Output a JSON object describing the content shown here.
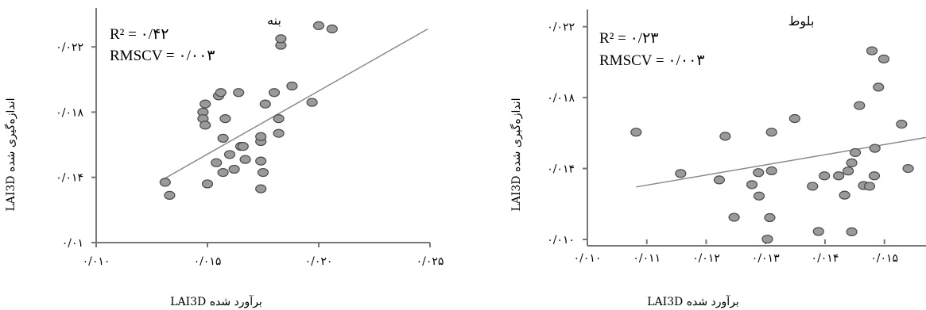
{
  "chart_data": [
    {
      "type": "scatter",
      "title": "بنه",
      "xlabel": "LAI3D برآورد شده",
      "ylabel": "LAI3D اندازه‌گیری شده",
      "xlim": [
        0.01,
        0.025
      ],
      "ylim": [
        0.01,
        0.024
      ],
      "x_ticks": [
        0.01,
        0.015,
        0.02,
        0.025
      ],
      "x_tick_labels": [
        "۰/۰۱۰",
        "۰/۰۱۵",
        "۰/۰۲۰",
        "۰/۰۲۵"
      ],
      "y_ticks": [
        0.01,
        0.014,
        0.018,
        0.022
      ],
      "y_tick_labels": [
        "۰/۰۱",
        "۰/۰۱۴",
        "۰/۰۱۸",
        "۰/۰۲۲"
      ],
      "annotations": {
        "r2": "R² = ۰/۴۲",
        "rmscv": "RMSCV = ۰/۰۰۳"
      },
      "grid": false,
      "points": [
        [
          0.0131,
          0.0137
        ],
        [
          0.0133,
          0.0129
        ],
        [
          0.0148,
          0.018
        ],
        [
          0.0148,
          0.0176
        ],
        [
          0.0149,
          0.0185
        ],
        [
          0.0149,
          0.0172
        ],
        [
          0.015,
          0.0136
        ],
        [
          0.0154,
          0.0149
        ],
        [
          0.0155,
          0.019
        ],
        [
          0.0156,
          0.0192
        ],
        [
          0.0157,
          0.0143
        ],
        [
          0.0157,
          0.0164
        ],
        [
          0.0158,
          0.0176
        ],
        [
          0.016,
          0.0154
        ],
        [
          0.0162,
          0.0145
        ],
        [
          0.0164,
          0.0192
        ],
        [
          0.0165,
          0.0159
        ],
        [
          0.0166,
          0.0159
        ],
        [
          0.0167,
          0.0151
        ],
        [
          0.0174,
          0.0133
        ],
        [
          0.0174,
          0.015
        ],
        [
          0.0174,
          0.0162
        ],
        [
          0.0174,
          0.0165
        ],
        [
          0.0175,
          0.0143
        ],
        [
          0.0176,
          0.0185
        ],
        [
          0.018,
          0.0192
        ],
        [
          0.0182,
          0.0167
        ],
        [
          0.0182,
          0.0176
        ],
        [
          0.0183,
          0.0221
        ],
        [
          0.0183,
          0.0225
        ],
        [
          0.0188,
          0.0196
        ],
        [
          0.0197,
          0.0186
        ],
        [
          0.02,
          0.0233
        ],
        [
          0.0206,
          0.0231
        ]
      ],
      "trend": {
        "x": [
          0.0131,
          0.0249
        ],
        "y": [
          0.01395,
          0.0231
        ]
      }
    },
    {
      "type": "scatter",
      "title": "بلوط",
      "xlabel": "LAI3D برآورد شده",
      "ylabel": "LAI3D اندازه‌گیری شده",
      "xlim": [
        0.01,
        0.0157
      ],
      "ylim": [
        0.01,
        0.0227
      ],
      "x_ticks": [
        0.01,
        0.011,
        0.012,
        0.013,
        0.014,
        0.015
      ],
      "x_tick_labels": [
        "۰/۰۱۰",
        "۰/۰۱۱",
        "۰/۰۱۲",
        "۰/۰۱۳",
        "۰/۰۱۴",
        "۰/۰۱۵"
      ],
      "y_ticks": [
        0.01,
        0.014,
        0.018,
        0.022
      ],
      "y_tick_labels": [
        "۰/۰۱۰",
        "۰/۰۱۴",
        "۰/۰۱۸",
        "۰/۰۲۲"
      ],
      "annotations": {
        "r2": "R² = ۰/۲۳",
        "rmscv": "RMSCV = ۰/۰۰۳"
      },
      "grid": false,
      "points": [
        [
          0.01082,
          0.01605
        ],
        [
          0.01157,
          0.01372
        ],
        [
          0.01222,
          0.01336
        ],
        [
          0.01232,
          0.01582
        ],
        [
          0.01247,
          0.01125
        ],
        [
          0.01277,
          0.01309
        ],
        [
          0.01288,
          0.01377
        ],
        [
          0.01289,
          0.01245
        ],
        [
          0.01303,
          0.01002
        ],
        [
          0.01307,
          0.01123
        ],
        [
          0.0131,
          0.01387
        ],
        [
          0.0131,
          0.01605
        ],
        [
          0.01349,
          0.01682
        ],
        [
          0.01379,
          0.013
        ],
        [
          0.01389,
          0.01045
        ],
        [
          0.01399,
          0.01359
        ],
        [
          0.01423,
          0.01359
        ],
        [
          0.01433,
          0.0125
        ],
        [
          0.01439,
          0.01386
        ],
        [
          0.01445,
          0.01432
        ],
        [
          0.01445,
          0.01043
        ],
        [
          0.01451,
          0.0149
        ],
        [
          0.01458,
          0.01755
        ],
        [
          0.01465,
          0.01304
        ],
        [
          0.01475,
          0.013
        ],
        [
          0.01479,
          0.02064
        ],
        [
          0.01483,
          0.01359
        ],
        [
          0.01484,
          0.01514
        ],
        [
          0.0149,
          0.01859
        ],
        [
          0.01499,
          0.02018
        ],
        [
          0.01529,
          0.0165
        ],
        [
          0.0154,
          0.014
        ]
      ],
      "trend": {
        "x": [
          0.01082,
          0.0157
        ],
        "y": [
          0.01296,
          0.01575
        ]
      }
    }
  ]
}
